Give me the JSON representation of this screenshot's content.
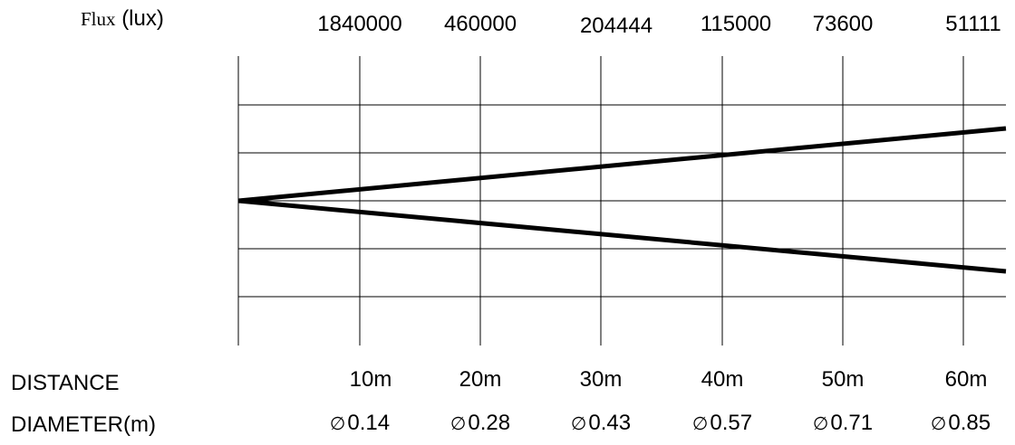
{
  "flux": {
    "label_word": "Flux",
    "label_unit": "(lux)",
    "values": [
      "1840000",
      "460000",
      "204444",
      "115000",
      "73600",
      "51111"
    ]
  },
  "distance": {
    "label": "DISTANCE",
    "values": [
      "10m",
      "20m",
      "30m",
      "40m",
      "50m",
      "60m"
    ]
  },
  "diameter": {
    "label": "DIAMETER(m)",
    "symbol": "∅",
    "values": [
      "0.14",
      "0.28",
      "0.43",
      "0.57",
      "0.71",
      "0.85"
    ]
  },
  "colors": {
    "lines": "#000000",
    "background": "#ffffff"
  }
}
